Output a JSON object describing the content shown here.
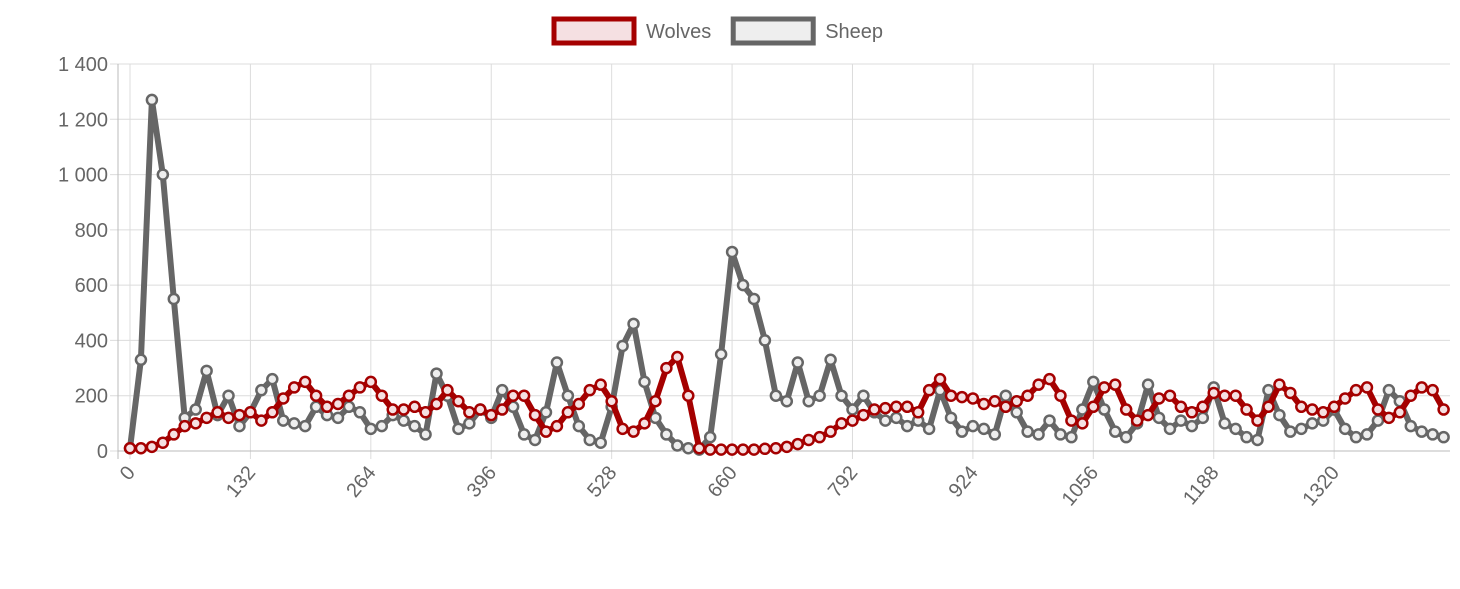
{
  "chart_data": {
    "type": "line",
    "x": [
      0,
      12,
      24,
      36,
      48,
      60,
      72,
      84,
      96,
      108,
      120,
      132,
      144,
      156,
      168,
      180,
      192,
      204,
      216,
      228,
      240,
      252,
      264,
      276,
      288,
      300,
      312,
      324,
      336,
      348,
      360,
      372,
      384,
      396,
      408,
      420,
      432,
      444,
      456,
      468,
      480,
      492,
      504,
      516,
      528,
      540,
      552,
      564,
      576,
      588,
      600,
      612,
      624,
      636,
      648,
      660,
      672,
      684,
      696,
      708,
      720,
      732,
      744,
      756,
      768,
      780,
      792,
      804,
      816,
      828,
      840,
      852,
      864,
      876,
      888,
      900,
      912,
      924,
      936,
      948,
      960,
      972,
      984,
      996,
      1008,
      1020,
      1032,
      1044,
      1056,
      1068,
      1080,
      1092,
      1104,
      1116,
      1128,
      1140,
      1152,
      1164,
      1176,
      1188,
      1200,
      1212,
      1224,
      1236,
      1248,
      1260,
      1272,
      1284,
      1296,
      1308,
      1320,
      1332,
      1344,
      1356,
      1368,
      1380,
      1392,
      1404,
      1416,
      1428,
      1440
    ],
    "series": [
      {
        "name": "Wolves",
        "color": "#a50000",
        "fill": "#f5e0e2",
        "values": [
          10,
          10,
          15,
          30,
          60,
          90,
          100,
          120,
          140,
          120,
          130,
          140,
          110,
          140,
          190,
          230,
          250,
          200,
          160,
          170,
          200,
          230,
          250,
          200,
          150,
          150,
          160,
          140,
          170,
          220,
          180,
          140,
          150,
          130,
          150,
          200,
          200,
          130,
          70,
          90,
          140,
          170,
          220,
          240,
          180,
          80,
          70,
          100,
          180,
          300,
          340,
          200,
          10,
          5,
          5,
          5,
          5,
          5,
          8,
          10,
          15,
          25,
          40,
          50,
          70,
          100,
          110,
          130,
          150,
          155,
          160,
          160,
          140,
          220,
          260,
          200,
          195,
          190,
          170,
          180,
          160,
          180,
          200,
          240,
          260,
          200,
          110,
          100,
          160,
          230,
          240,
          150,
          110,
          130,
          190,
          200,
          160,
          140,
          160,
          210,
          200,
          200,
          150,
          110,
          160,
          240,
          210,
          160,
          150,
          140,
          160,
          190,
          220,
          230,
          150,
          120,
          140,
          200,
          230,
          220,
          150
        ]
      },
      {
        "name": "Sheep",
        "color": "#666666",
        "fill": "#eeeeee",
        "values": [
          10,
          330,
          1270,
          1000,
          550,
          120,
          150,
          290,
          130,
          200,
          90,
          140,
          220,
          260,
          110,
          100,
          90,
          160,
          130,
          120,
          160,
          140,
          80,
          90,
          130,
          110,
          90,
          60,
          280,
          200,
          80,
          100,
          150,
          120,
          220,
          160,
          60,
          40,
          140,
          320,
          200,
          90,
          40,
          30,
          160,
          380,
          460,
          250,
          120,
          60,
          20,
          10,
          5,
          50,
          350,
          720,
          600,
          550,
          400,
          200,
          180,
          320,
          180,
          200,
          330,
          200,
          150,
          200,
          140,
          110,
          120,
          90,
          110,
          80,
          220,
          120,
          70,
          90,
          80,
          60,
          200,
          140,
          70,
          60,
          110,
          60,
          50,
          150,
          250,
          150,
          70,
          50,
          100,
          240,
          120,
          80,
          110,
          90,
          120,
          230,
          100,
          80,
          50,
          40,
          220,
          130,
          70,
          80,
          100,
          110,
          150,
          80,
          50,
          60,
          110,
          220,
          180,
          90,
          70,
          60,
          50
        ]
      }
    ],
    "xlim": [
      0,
      1447
    ],
    "xticks": [
      0,
      132,
      264,
      396,
      528,
      660,
      792,
      924,
      1056,
      1188,
      1320
    ],
    "ylim": [
      0,
      1400
    ],
    "yticks": [
      0,
      200,
      400,
      600,
      800,
      {
        "value": 1000,
        "label": "1 000"
      },
      {
        "value": 1200,
        "label": "1 200"
      },
      {
        "value": 1400,
        "label": "1 400"
      }
    ],
    "grid": true,
    "legend": "top"
  }
}
